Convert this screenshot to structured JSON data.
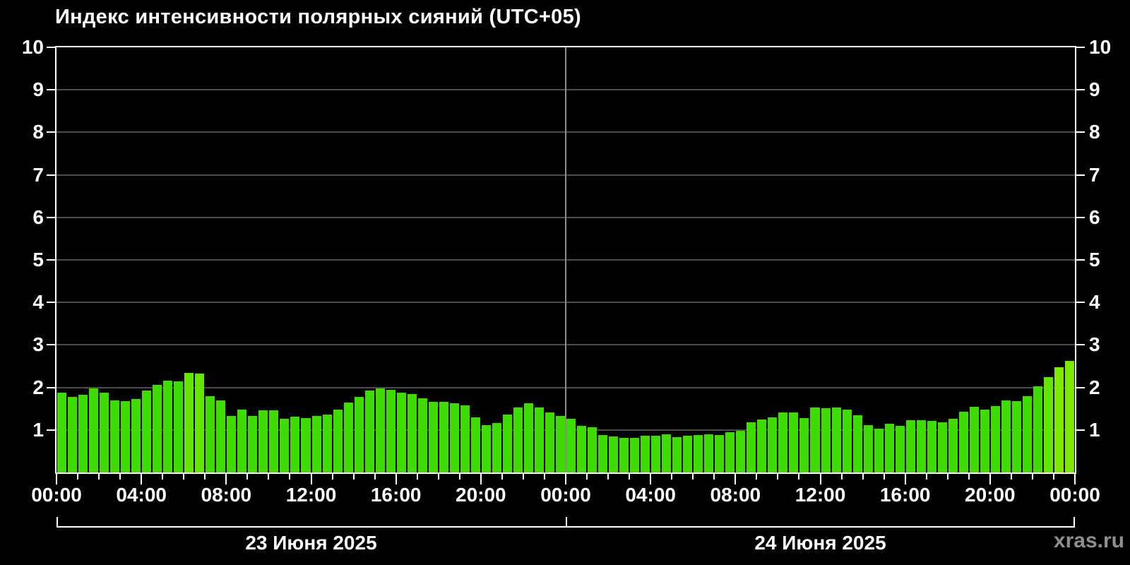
{
  "title": "Индекс интенсивности полярных сияний (UTC+05)",
  "watermark": "xras.ru",
  "chart_data": {
    "type": "bar",
    "title": "Индекс интенсивности полярных сияний (UTC+05)",
    "timezone_note": "UTC+05",
    "ylim": [
      0,
      10
    ],
    "ytick_labels": [
      "1",
      "2",
      "3",
      "4",
      "5",
      "6",
      "7",
      "8",
      "9",
      "10"
    ],
    "xtick_labels": [
      "00:00",
      "04:00",
      "08:00",
      "12:00",
      "16:00",
      "20:00",
      "00:00",
      "04:00",
      "08:00",
      "12:00",
      "16:00",
      "20:00",
      "00:00"
    ],
    "minor_xtick_every_hours": 1,
    "major_xtick_every_hours": 4,
    "bar_interval_minutes": 30,
    "grid": "horizontal gray lines at integer levels 1-9, gray vertical separator at day boundary",
    "legend_position": "none",
    "days": [
      {
        "label": "23 Июня 2025",
        "start_time": "00:00",
        "values": [
          1.87,
          1.78,
          1.83,
          1.97,
          1.88,
          1.69,
          1.68,
          1.73,
          1.92,
          2.06,
          2.16,
          2.14,
          2.35,
          2.33,
          1.79,
          1.69,
          1.33,
          1.48,
          1.33,
          1.47,
          1.47,
          1.26,
          1.31,
          1.28,
          1.33,
          1.36,
          1.48,
          1.65,
          1.77,
          1.93,
          1.97,
          1.95,
          1.87,
          1.85,
          1.74,
          1.66,
          1.66,
          1.62,
          1.57,
          1.29,
          1.12,
          1.16,
          1.37,
          1.53,
          1.62,
          1.53,
          1.42,
          1.33
        ]
      },
      {
        "label": "24 Июня 2025",
        "start_time": "00:00",
        "values": [
          1.26,
          1.1,
          1.07,
          0.88,
          0.85,
          0.82,
          0.82,
          0.86,
          0.86,
          0.9,
          0.83,
          0.87,
          0.88,
          0.89,
          0.88,
          0.95,
          0.98,
          1.18,
          1.24,
          1.29,
          1.42,
          1.42,
          1.28,
          1.52,
          1.51,
          1.53,
          1.48,
          1.34,
          1.12,
          1.03,
          1.14,
          1.1,
          1.23,
          1.23,
          1.21,
          1.18,
          1.26,
          1.43,
          1.54,
          1.48,
          1.56,
          1.7,
          1.68,
          1.79,
          2.03,
          2.24,
          2.48,
          2.62
        ]
      }
    ],
    "colors": {
      "background": "#000000",
      "frame": "#ffffff",
      "grid": "#4c4c4c",
      "day_separator": "#8c8c8c",
      "bar_low": "#3edc00",
      "bar_mid": "#64e600",
      "bar_high": "#7cea00",
      "text": "#ffffff",
      "watermark": "#8f8f8f"
    },
    "color_thresholds": {
      "mid": 2.2,
      "high": 2.45
    }
  }
}
